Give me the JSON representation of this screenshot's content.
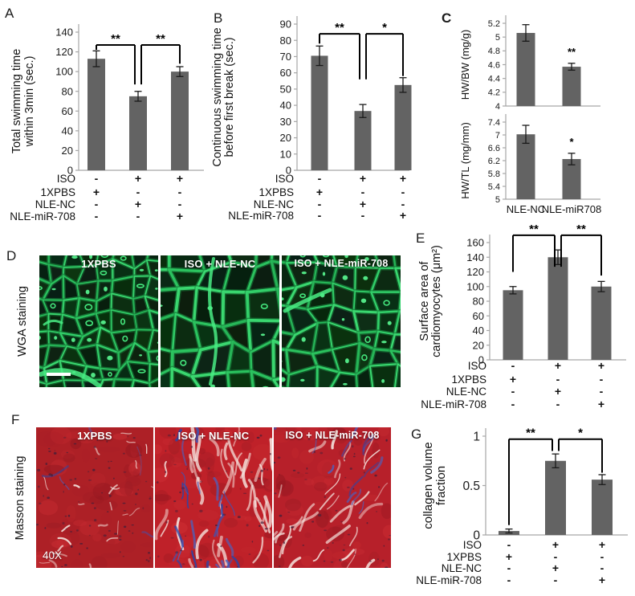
{
  "figure_type": "multi-panel scientific figure",
  "colors": {
    "bar": "#636363",
    "axis": "#a6a6a6",
    "error_bar": "#1a1a1a",
    "significance": "#000000",
    "wga_green": "#2fd567",
    "wga_background": "#06180a",
    "masson_red": "#b7202a",
    "masson_blue": "#3b55b8",
    "image_label_text": "#ffffff"
  },
  "panels": {
    "A": {
      "letter": "A"
    },
    "B": {
      "letter": "B"
    },
    "C": {
      "letter": "C"
    },
    "D": {
      "letter": "D",
      "side_label": "WGA staining",
      "image_labels": [
        "1XPBS",
        "ISO + NLE-NC",
        "ISO + NLE-miR-708"
      ],
      "has_scale_bar": true
    },
    "E": {
      "letter": "E"
    },
    "F": {
      "letter": "F",
      "side_label": "Masson staining",
      "image_labels": [
        "1XPBS",
        "ISO + NLE-NC",
        "ISO + NLE-miR-708"
      ],
      "magnification": "40X"
    },
    "G": {
      "letter": "G"
    }
  },
  "chart_data": [
    {
      "id": "A",
      "type": "bar",
      "ylabel": "Total swimming time within 3min (sec.)",
      "ylabel_lines": [
        "Total swimming time",
        "within 3min (sec.)"
      ],
      "ylim": [
        0,
        140
      ],
      "ytick_step": 20,
      "values": [
        113,
        75,
        100
      ],
      "errors": [
        8,
        5,
        5
      ],
      "significance": [
        {
          "between": [
            1,
            2
          ],
          "label": "**"
        },
        {
          "between": [
            2,
            3
          ],
          "label": "**"
        }
      ],
      "conditions": [
        {
          "label": "ISO",
          "signs": [
            "-",
            "+",
            "+"
          ]
        },
        {
          "label": "1XPBS",
          "signs": [
            "+",
            "-",
            "-"
          ]
        },
        {
          "label": "NLE-NC",
          "signs": [
            "-",
            "+",
            "-"
          ]
        },
        {
          "label": "NLE-miR-708",
          "signs": [
            "-",
            "-",
            "+"
          ]
        }
      ]
    },
    {
      "id": "B",
      "type": "bar",
      "ylabel": "Continuous swimming time before first break (sec.)",
      "ylabel_lines": [
        "Continuous swimming time",
        "before first break (sec.)"
      ],
      "ylim": [
        0,
        90
      ],
      "ytick_step": 10,
      "values": [
        70.5,
        36.5,
        52.5
      ],
      "errors": [
        6,
        4,
        4.5
      ],
      "significance": [
        {
          "between": [
            1,
            2
          ],
          "label": "**"
        },
        {
          "between": [
            2,
            3
          ],
          "label": "*"
        }
      ],
      "conditions": [
        {
          "label": "ISO",
          "signs": [
            "-",
            "+",
            "+"
          ]
        },
        {
          "label": "1XPBS",
          "signs": [
            "+",
            "-",
            "-"
          ]
        },
        {
          "label": "NLE-NC",
          "signs": [
            "-",
            "+",
            "-"
          ]
        },
        {
          "label": "NLE-miR-708",
          "signs": [
            "-",
            "-",
            "+"
          ]
        }
      ]
    },
    {
      "id": "C1",
      "type": "bar",
      "ylabel": "HW/BW (mg/g)",
      "ylabel_lines": [
        "HW/BW (mg/g)"
      ],
      "ylim": [
        4,
        5.2
      ],
      "ytick_step": 0.2,
      "categories": [
        "NLE-NC",
        "NLE-miR708"
      ],
      "values": [
        5.06,
        4.57
      ],
      "errors": [
        0.12,
        0.05
      ],
      "significance": [
        {
          "bar": 2,
          "label": "**"
        }
      ]
    },
    {
      "id": "C2",
      "type": "bar",
      "ylabel": "HW/TL (mg/mm)",
      "ylabel_lines": [
        "HW/TL (mg/mm)"
      ],
      "ylim": [
        5,
        7.4
      ],
      "ytick_step": 0.4,
      "categories": [
        "NLE-NC",
        "NLE-miR708"
      ],
      "values": [
        7.02,
        6.25
      ],
      "errors": [
        0.28,
        0.18
      ],
      "significance": [
        {
          "bar": 2,
          "label": "*"
        }
      ]
    },
    {
      "id": "E",
      "type": "bar",
      "ylabel": "Surface area of cardiomyocytes (μm²)",
      "ylabel_lines": [
        "Surface area of",
        "cardiomyocytes (μm²)"
      ],
      "ylim": [
        0,
        160
      ],
      "ytick_step": 20,
      "values": [
        95,
        140,
        100
      ],
      "errors": [
        5,
        10,
        7
      ],
      "significance": [
        {
          "between": [
            1,
            2
          ],
          "label": "**"
        },
        {
          "between": [
            2,
            3
          ],
          "label": "**"
        }
      ],
      "conditions": [
        {
          "label": "ISO",
          "signs": [
            "-",
            "+",
            "+"
          ]
        },
        {
          "label": "1XPBS",
          "signs": [
            "+",
            "-",
            "-"
          ]
        },
        {
          "label": "NLE-NC",
          "signs": [
            "-",
            "+",
            "-"
          ]
        },
        {
          "label": "NLE-miR-708",
          "signs": [
            "-",
            "-",
            "+"
          ]
        }
      ]
    },
    {
      "id": "G",
      "type": "bar",
      "ylabel": "collagen volume fraction",
      "ylabel_lines": [
        "collagen volume",
        "fraction"
      ],
      "ylim": [
        0,
        1
      ],
      "ytick_step": 0.5,
      "values": [
        0.04,
        0.75,
        0.56
      ],
      "errors": [
        0.02,
        0.07,
        0.05
      ],
      "significance": [
        {
          "between": [
            1,
            2
          ],
          "label": "**"
        },
        {
          "between": [
            2,
            3
          ],
          "label": "*"
        }
      ],
      "conditions": [
        {
          "label": "ISO",
          "signs": [
            "-",
            "+",
            "+"
          ]
        },
        {
          "label": "1XPBS",
          "signs": [
            "+",
            "-",
            "-"
          ]
        },
        {
          "label": "NLE-NC",
          "signs": [
            "-",
            "+",
            "-"
          ]
        },
        {
          "label": "NLE-miR-708",
          "signs": [
            "-",
            "-",
            "+"
          ]
        }
      ]
    }
  ]
}
